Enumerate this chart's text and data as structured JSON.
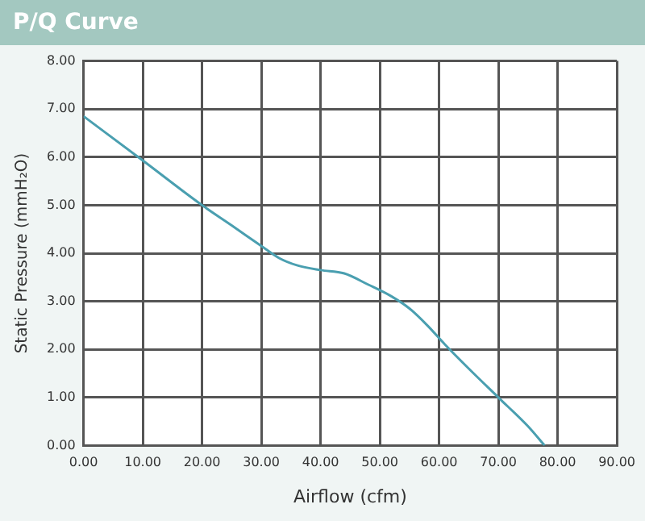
{
  "chart_data": {
    "type": "line",
    "title": "P/Q Curve",
    "xlabel": "Airflow (cfm)",
    "ylabel": "Static Pressure (mmH₂O)",
    "x": [
      0,
      10,
      20,
      25,
      30,
      33,
      36,
      40,
      44,
      48,
      52,
      55,
      58,
      61,
      65,
      70,
      75,
      77.8
    ],
    "series": [
      {
        "color": "#4a9fb0",
        "values": [
          6.85,
          5.93,
          5.0,
          4.58,
          4.15,
          3.9,
          3.75,
          3.65,
          3.58,
          3.35,
          3.1,
          2.85,
          2.5,
          2.1,
          1.6,
          1.0,
          0.4,
          0
        ]
      }
    ],
    "xlim": [
      0,
      90
    ],
    "ylim": [
      0,
      8
    ],
    "xticks": [
      {
        "value": 0,
        "label": "0.00"
      },
      {
        "value": 10,
        "label": "10.00"
      },
      {
        "value": 20,
        "label": "20.00"
      },
      {
        "value": 30,
        "label": "30.00"
      },
      {
        "value": 40,
        "label": "40.00"
      },
      {
        "value": 50,
        "label": "50.00"
      },
      {
        "value": 60,
        "label": "60.00"
      },
      {
        "value": 70,
        "label": "70.00"
      },
      {
        "value": 80,
        "label": "80.00"
      },
      {
        "value": 90,
        "label": "90.00"
      }
    ],
    "yticks": [
      {
        "value": 0,
        "label": "0.00"
      },
      {
        "value": 1,
        "label": "1.00"
      },
      {
        "value": 2,
        "label": "2.00"
      },
      {
        "value": 3,
        "label": "3.00"
      },
      {
        "value": 4,
        "label": "4.00"
      },
      {
        "value": 5,
        "label": "5.00"
      },
      {
        "value": 6,
        "label": "6.00"
      },
      {
        "value": 7,
        "label": "7.00"
      },
      {
        "value": 8,
        "label": "8.00"
      }
    ],
    "grid": true,
    "legend": false,
    "marker": "none",
    "line_style": "solid"
  }
}
